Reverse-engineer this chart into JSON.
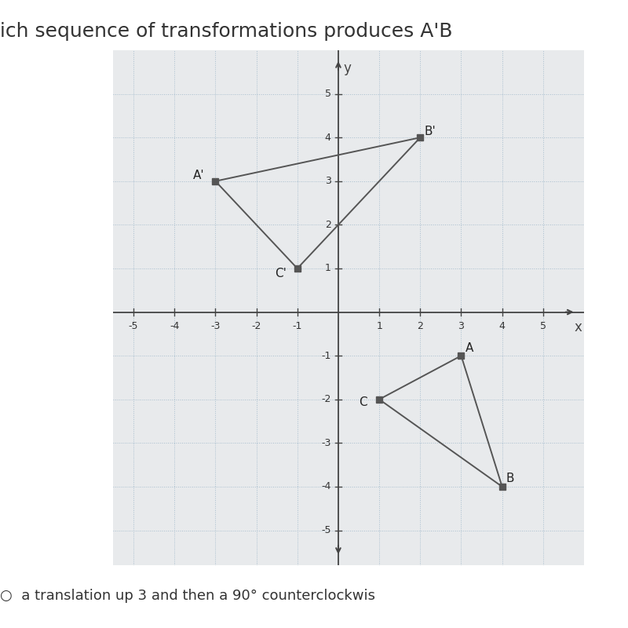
{
  "background_color": "#e8eaec",
  "grid_color": "#a8bece",
  "axis_color": "#444444",
  "line_color": "#555555",
  "dot_color": "#555555",
  "xlim": [
    -5.5,
    6.0
  ],
  "ylim": [
    -5.8,
    6.0
  ],
  "triangle_ABC": {
    "A": [
      3,
      -1
    ],
    "B": [
      4,
      -4
    ],
    "C": [
      1,
      -2
    ]
  },
  "triangle_A1B1C1": {
    "A1": [
      -3,
      3
    ],
    "B1": [
      2,
      4
    ],
    "C1": [
      -1,
      1
    ]
  },
  "label_fontsize": 11,
  "tick_fontsize": 9,
  "title_text": "hich sequence of transformations produces A’B",
  "bottom_text": "a translation up 3 and then a 90° counterclockwis",
  "title_fontsize": 18
}
